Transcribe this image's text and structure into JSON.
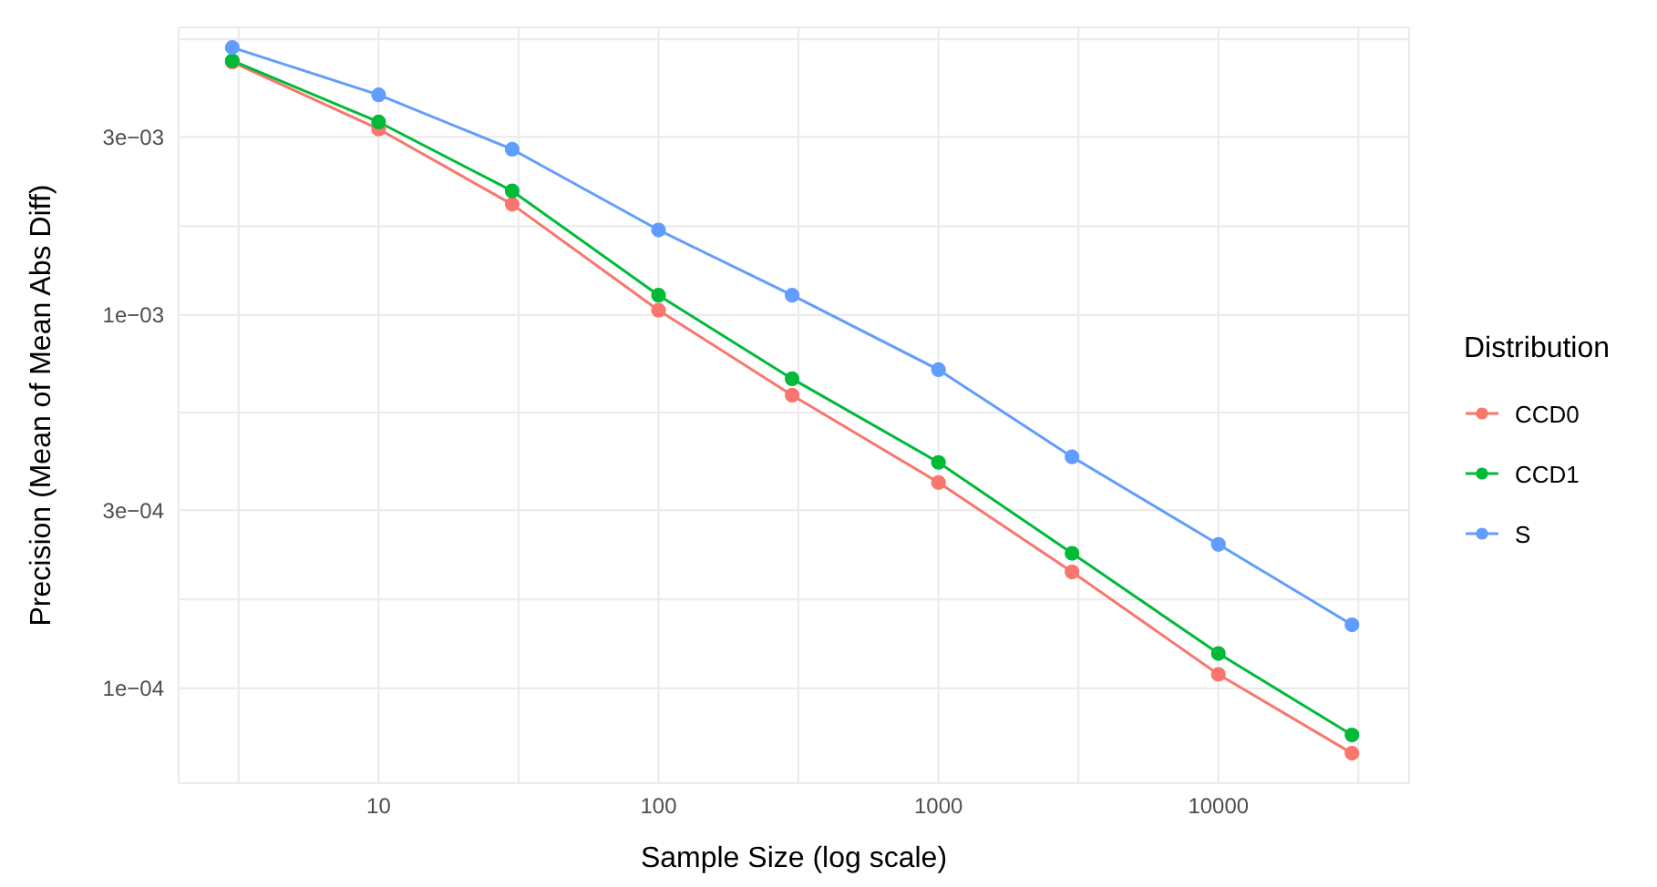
{
  "chart_data": {
    "type": "line",
    "xlabel": "Sample Size (log scale)",
    "ylabel": "Precision (Mean of Mean Abs Diff)",
    "legend_title": "Distribution",
    "x": [
      3,
      10,
      30,
      100,
      300,
      1000,
      3000,
      10000,
      30000
    ],
    "series": [
      {
        "name": "CCD0",
        "color": "#f8766d",
        "values": [
          0.00476,
          0.00315,
          0.00198,
          0.00103,
          0.00061,
          0.000356,
          0.000205,
          0.000109,
          6.7e-05
        ]
      },
      {
        "name": "CCD1",
        "color": "#00ba38",
        "values": [
          0.0048,
          0.00329,
          0.00215,
          0.00113,
          0.000675,
          0.000403,
          0.00023,
          0.000124,
          7.5e-05
        ]
      },
      {
        "name": "S",
        "color": "#619cff",
        "values": [
          0.00521,
          0.00389,
          0.00278,
          0.00169,
          0.00113,
          0.000714,
          0.000417,
          0.000243,
          0.000148
        ]
      }
    ],
    "xlim": [
      1.93,
      48000
    ],
    "ylim": [
      5.57e-05,
      0.0059
    ],
    "xticks": [
      {
        "value": 3.162,
        "label": null
      },
      10,
      {
        "value": 31.62,
        "label": null
      },
      100,
      {
        "value": 316.2,
        "label": null
      },
      1000,
      {
        "value": 3162,
        "label": null
      },
      10000,
      {
        "value": 31623,
        "label": null
      }
    ],
    "yticks": [
      {
        "value": 0.0001,
        "label": "1e−04"
      },
      {
        "value": 0.000173,
        "label": null
      },
      {
        "value": 0.0003,
        "label": "3e−04"
      },
      {
        "value": 0.000548,
        "label": null
      },
      {
        "value": 0.001,
        "label": "1e−03"
      },
      {
        "value": 0.00173,
        "label": null
      },
      {
        "value": 0.003,
        "label": "3e−03"
      },
      {
        "value": 0.00548,
        "label": null
      }
    ],
    "log": "xy",
    "grid": true,
    "legend": "right",
    "marker": "circle"
  }
}
